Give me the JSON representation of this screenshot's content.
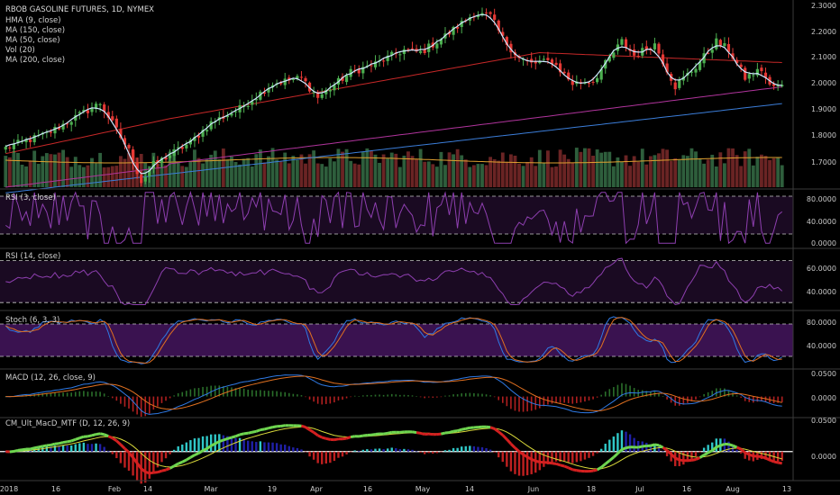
{
  "colors": {
    "background": "#000000",
    "pane_separator": "#3a3a3a",
    "text": "#d0d0d0",
    "axis_text": "#c8c8c8",
    "candle_up": "#4caf50",
    "candle_down": "#e53935",
    "hma": "#cfe8ff",
    "ma150": "#c62828",
    "ma50": "#b0349c",
    "ma200": "#3b7dd8",
    "vol_up": "#2e5e3c",
    "vol_down": "#6a2424",
    "vol_ma": "#e0a030",
    "rsi_line": "#8e3fb0",
    "rsi_band": "#1a0a22",
    "stoch_band": "#3a1250",
    "stoch_k": "#2f7ae5",
    "stoch_d": "#e07020",
    "macd_line": "#2f7ae5",
    "macd_signal": "#e07020",
    "cm_up": "#6fd650",
    "cm_down": "#d42020",
    "cm_signal": "#d9d93a",
    "cm_hist_up": "#2020a8",
    "cm_hist_upbright": "#30c8c8",
    "cm_hist_down": "#c02020",
    "cm_zero": "#ffffff"
  },
  "chart_data": {
    "type": "candlestick",
    "title": "RBOB GASOLINE FUTURES, 1D, NYMEX",
    "studies": [
      "HMA (9, close)",
      "MA (150, close)",
      "MA (50, close)",
      "Vol (20)",
      "MA (200, close)"
    ],
    "price_axis": {
      "ticks": [
        "2.3000",
        "2.2000",
        "2.1000",
        "2.0000",
        "1.9000",
        "1.8000",
        "1.7000"
      ],
      "range": [
        1.65,
        2.3
      ]
    },
    "x_axis_labels": [
      "2018",
      "16",
      "Feb",
      "14",
      "Mar",
      "19",
      "Apr",
      "16",
      "May",
      "14",
      "Jun",
      "18",
      "Jul",
      "16",
      "Aug",
      "13"
    ],
    "close_anchors": [
      [
        0,
        1.79
      ],
      [
        10,
        1.84
      ],
      [
        23,
        1.95
      ],
      [
        30,
        1.78
      ],
      [
        33,
        1.67
      ],
      [
        36,
        1.73
      ],
      [
        45,
        1.81
      ],
      [
        50,
        1.88
      ],
      [
        57,
        1.93
      ],
      [
        65,
        2.02
      ],
      [
        72,
        2.04
      ],
      [
        76,
        1.97
      ],
      [
        84,
        2.06
      ],
      [
        90,
        2.09
      ],
      [
        97,
        2.14
      ],
      [
        101,
        2.13
      ],
      [
        108,
        2.2
      ],
      [
        114,
        2.27
      ],
      [
        118,
        2.26
      ],
      [
        121,
        2.18
      ],
      [
        125,
        2.11
      ],
      [
        128,
        2.09
      ],
      [
        133,
        2.1
      ],
      [
        138,
        2.02
      ],
      [
        143,
        2.03
      ],
      [
        150,
        2.17
      ],
      [
        153,
        2.12
      ],
      [
        158,
        2.16
      ],
      [
        163,
        2.01
      ],
      [
        168,
        2.08
      ],
      [
        173,
        2.17
      ],
      [
        176,
        2.14
      ],
      [
        180,
        2.04
      ],
      [
        184,
        2.07
      ],
      [
        186,
        2.01
      ]
    ],
    "hma_color": "#cfe8ff",
    "rsi3": {
      "label": "RSI (3, close)",
      "ticks": [
        "80.0000",
        "40.0000",
        "0.0000"
      ],
      "levels": [
        90,
        20
      ],
      "range": [
        0,
        100
      ]
    },
    "rsi14": {
      "label": "RSI (14, close)",
      "ticks": [
        "60.0000",
        "40.0000"
      ],
      "levels": [
        70,
        30
      ],
      "range": [
        25,
        80
      ]
    },
    "stoch": {
      "label": "Stoch (6, 3, 3)",
      "ticks": [
        "80.0000",
        "40.0000"
      ],
      "levels": [
        80,
        20
      ],
      "range": [
        0,
        100
      ]
    },
    "macd": {
      "label": "MACD (12, 26, close, 9)",
      "ticks": [
        "0.0500",
        "0.0000"
      ],
      "range": [
        -0.045,
        0.06
      ]
    },
    "cm_macd": {
      "label": "CM_Ult_MacD_MTF (D, 12, 26, 9)",
      "ticks": [
        "0.0500",
        "0.0000"
      ],
      "range": [
        -0.055,
        0.065
      ]
    }
  }
}
